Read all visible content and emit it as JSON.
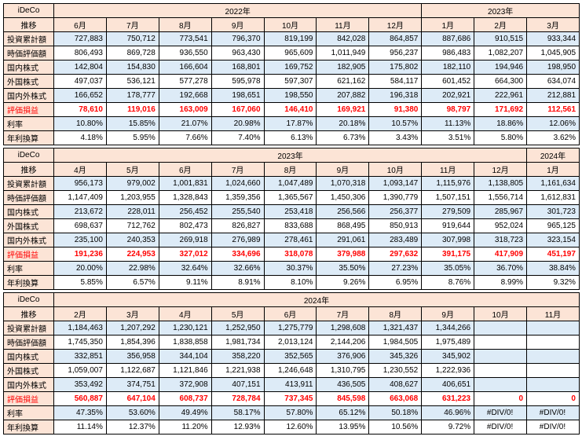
{
  "labels": {
    "corner_top": "iDeCo",
    "corner_sub": "推移",
    "rows": [
      "投資累計額",
      "時価評価額",
      "国内株式",
      "外国株式",
      "国内外株式",
      "評価損益",
      "利率",
      "年利換算"
    ]
  },
  "colors": {
    "header_bg": "#fce4d6",
    "band_even": "#ddebf7",
    "band_odd": "#ffffff",
    "gain_text": "#ff0000"
  },
  "blocks": [
    {
      "years": [
        {
          "label": "2022年",
          "span": 7
        },
        {
          "label": "2023年",
          "span": 3
        }
      ],
      "months": [
        "6月",
        "7月",
        "8月",
        "9月",
        "10月",
        "11月",
        "12月",
        "1月",
        "2月",
        "3月"
      ],
      "rows": [
        [
          "727,883",
          "750,712",
          "773,541",
          "796,370",
          "819,199",
          "842,028",
          "864,857",
          "887,686",
          "910,515",
          "933,344"
        ],
        [
          "806,493",
          "869,728",
          "936,550",
          "963,430",
          "965,609",
          "1,011,949",
          "956,237",
          "986,483",
          "1,082,207",
          "1,045,905"
        ],
        [
          "142,804",
          "154,830",
          "166,604",
          "168,801",
          "169,752",
          "182,905",
          "175,802",
          "182,110",
          "194,946",
          "198,950"
        ],
        [
          "497,037",
          "536,121",
          "577,278",
          "595,978",
          "597,307",
          "621,162",
          "584,117",
          "601,452",
          "664,300",
          "634,074"
        ],
        [
          "166,652",
          "178,777",
          "192,668",
          "198,651",
          "198,550",
          "207,882",
          "196,318",
          "202,921",
          "222,961",
          "212,881"
        ],
        [
          "78,610",
          "119,016",
          "163,009",
          "167,060",
          "146,410",
          "169,921",
          "91,380",
          "98,797",
          "171,692",
          "112,561"
        ],
        [
          "10.80%",
          "15.85%",
          "21.07%",
          "20.98%",
          "17.87%",
          "20.18%",
          "10.57%",
          "11.13%",
          "18.86%",
          "12.06%"
        ],
        [
          "4.18%",
          "5.95%",
          "7.66%",
          "7.40%",
          "6.13%",
          "6.73%",
          "3.43%",
          "3.51%",
          "5.80%",
          "3.62%"
        ]
      ]
    },
    {
      "years": [
        {
          "label": "2023年",
          "span": 9
        },
        {
          "label": "2024年",
          "span": 1
        }
      ],
      "months": [
        "4月",
        "5月",
        "6月",
        "7月",
        "8月",
        "9月",
        "10月",
        "11月",
        "12月",
        "1月"
      ],
      "rows": [
        [
          "956,173",
          "979,002",
          "1,001,831",
          "1,024,660",
          "1,047,489",
          "1,070,318",
          "1,093,147",
          "1,115,976",
          "1,138,805",
          "1,161,634"
        ],
        [
          "1,147,409",
          "1,203,955",
          "1,328,843",
          "1,359,356",
          "1,365,567",
          "1,450,306",
          "1,390,779",
          "1,507,151",
          "1,556,714",
          "1,612,831"
        ],
        [
          "213,672",
          "228,011",
          "256,452",
          "255,540",
          "253,418",
          "256,566",
          "256,377",
          "279,509",
          "285,967",
          "301,723"
        ],
        [
          "698,637",
          "712,762",
          "802,473",
          "826,827",
          "833,688",
          "868,495",
          "850,913",
          "919,644",
          "952,024",
          "965,125"
        ],
        [
          "235,100",
          "240,353",
          "269,918",
          "276,989",
          "278,461",
          "291,061",
          "283,489",
          "307,998",
          "318,723",
          "323,154"
        ],
        [
          "191,236",
          "224,953",
          "327,012",
          "334,696",
          "318,078",
          "379,988",
          "297,632",
          "391,175",
          "417,909",
          "451,197"
        ],
        [
          "20.00%",
          "22.98%",
          "32.64%",
          "32.66%",
          "30.37%",
          "35.50%",
          "27.23%",
          "35.05%",
          "36.70%",
          "38.84%"
        ],
        [
          "5.85%",
          "6.57%",
          "9.11%",
          "8.91%",
          "8.10%",
          "9.26%",
          "6.95%",
          "8.76%",
          "8.99%",
          "9.32%"
        ]
      ]
    },
    {
      "years": [
        {
          "label": "2024年",
          "span": 10
        }
      ],
      "months": [
        "2月",
        "3月",
        "4月",
        "5月",
        "6月",
        "7月",
        "8月",
        "9月",
        "10月",
        "11月"
      ],
      "rows": [
        [
          "1,184,463",
          "1,207,292",
          "1,230,121",
          "1,252,950",
          "1,275,779",
          "1,298,608",
          "1,321,437",
          "1,344,266",
          "",
          ""
        ],
        [
          "1,745,350",
          "1,854,396",
          "1,838,858",
          "1,981,734",
          "2,013,124",
          "2,144,206",
          "1,984,505",
          "1,975,489",
          "",
          ""
        ],
        [
          "332,851",
          "356,958",
          "344,104",
          "358,220",
          "352,565",
          "376,906",
          "345,326",
          "345,902",
          "",
          ""
        ],
        [
          "1,059,007",
          "1,122,687",
          "1,121,846",
          "1,221,938",
          "1,246,648",
          "1,310,795",
          "1,230,552",
          "1,222,936",
          "",
          ""
        ],
        [
          "353,492",
          "374,751",
          "372,908",
          "407,151",
          "413,911",
          "436,505",
          "408,627",
          "406,651",
          "",
          ""
        ],
        [
          "560,887",
          "647,104",
          "608,737",
          "728,784",
          "737,345",
          "845,598",
          "663,068",
          "631,223",
          "0",
          "0"
        ],
        [
          "47.35%",
          "53.60%",
          "49.49%",
          "58.17%",
          "57.80%",
          "65.12%",
          "50.18%",
          "46.96%",
          "#DIV/0!",
          "#DIV/0!"
        ],
        [
          "11.14%",
          "12.37%",
          "11.20%",
          "12.93%",
          "12.60%",
          "13.95%",
          "10.56%",
          "9.72%",
          "#DIV/0!",
          "#DIV/0!"
        ]
      ]
    }
  ]
}
